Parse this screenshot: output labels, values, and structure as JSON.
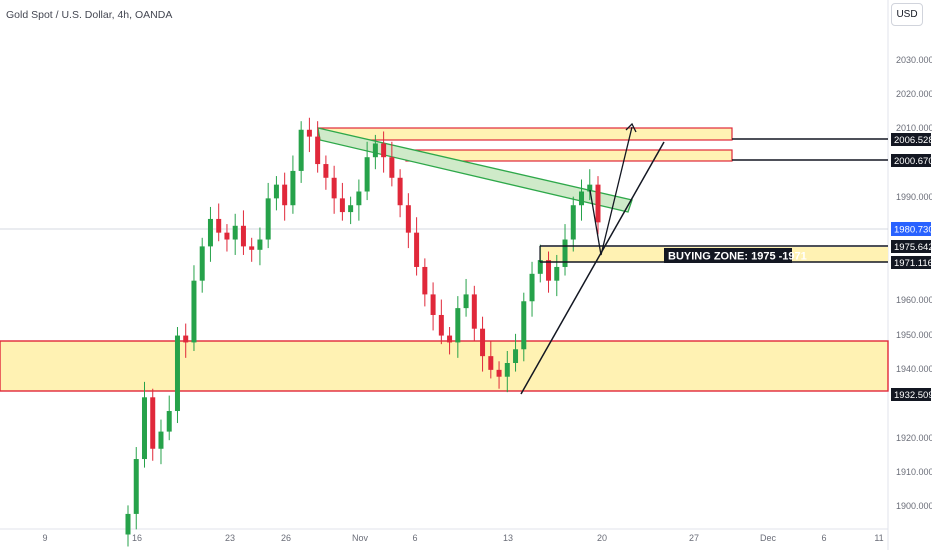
{
  "header": {
    "title": "Gold Spot / U.S. Dollar, 4h, OANDA",
    "currency": "USD"
  },
  "colors": {
    "bull": "#26a24a",
    "bear": "#e0283a",
    "zone_fill": "#fff2b3",
    "zone_border": "#e0283a",
    "channel_fill": "#cfeac9",
    "channel_border": "#2ea84a",
    "current_price_badge": "#2962ff",
    "label_badge": "#131722"
  },
  "chart_data": {
    "type": "candlestick",
    "symbol": "XAUUSD",
    "interval": "4h",
    "y_axis_ticks": [
      "2030.000",
      "2020.000",
      "2010.000",
      "1990.000",
      "1960.000",
      "1950.000",
      "1940.000",
      "1920.000",
      "1910.000",
      "1900.000"
    ],
    "x_axis_ticks": [
      "9",
      "16",
      "23",
      "26",
      "Nov",
      "6",
      "13",
      "20",
      "27",
      "Dec",
      "6",
      "11"
    ],
    "current_price": "1980.730",
    "price_labels": [
      "2006.528",
      "2000.670",
      "1975.642",
      "1971.116",
      "1932.509"
    ],
    "annotation": "BUYING ZONE: 1975 -1971",
    "zones": [
      {
        "low": 2006.5,
        "high": 2010.5
      },
      {
        "low": 2000.7,
        "high": 2002.6
      },
      {
        "low": 1971.1,
        "high": 1975.6
      },
      {
        "low": 1932.5,
        "high": 1947.8
      }
    ],
    "closes": [
      1896,
      1912,
      1930,
      1915,
      1920,
      1926,
      1948,
      1946,
      1964,
      1974,
      1982,
      1978,
      1976,
      1980,
      1974,
      1973,
      1976,
      1988,
      1992,
      1986,
      1996,
      2008,
      2006,
      1998,
      1994,
      1988,
      1984,
      1986,
      1990,
      2000,
      2004,
      2000,
      1994,
      1986,
      1978,
      1968,
      1960,
      1954,
      1948,
      1946,
      1956,
      1960,
      1950,
      1942,
      1938,
      1936,
      1940,
      1944,
      1958,
      1966,
      1970,
      1964,
      1968,
      1976,
      1986,
      1990,
      1992,
      1981
    ]
  }
}
